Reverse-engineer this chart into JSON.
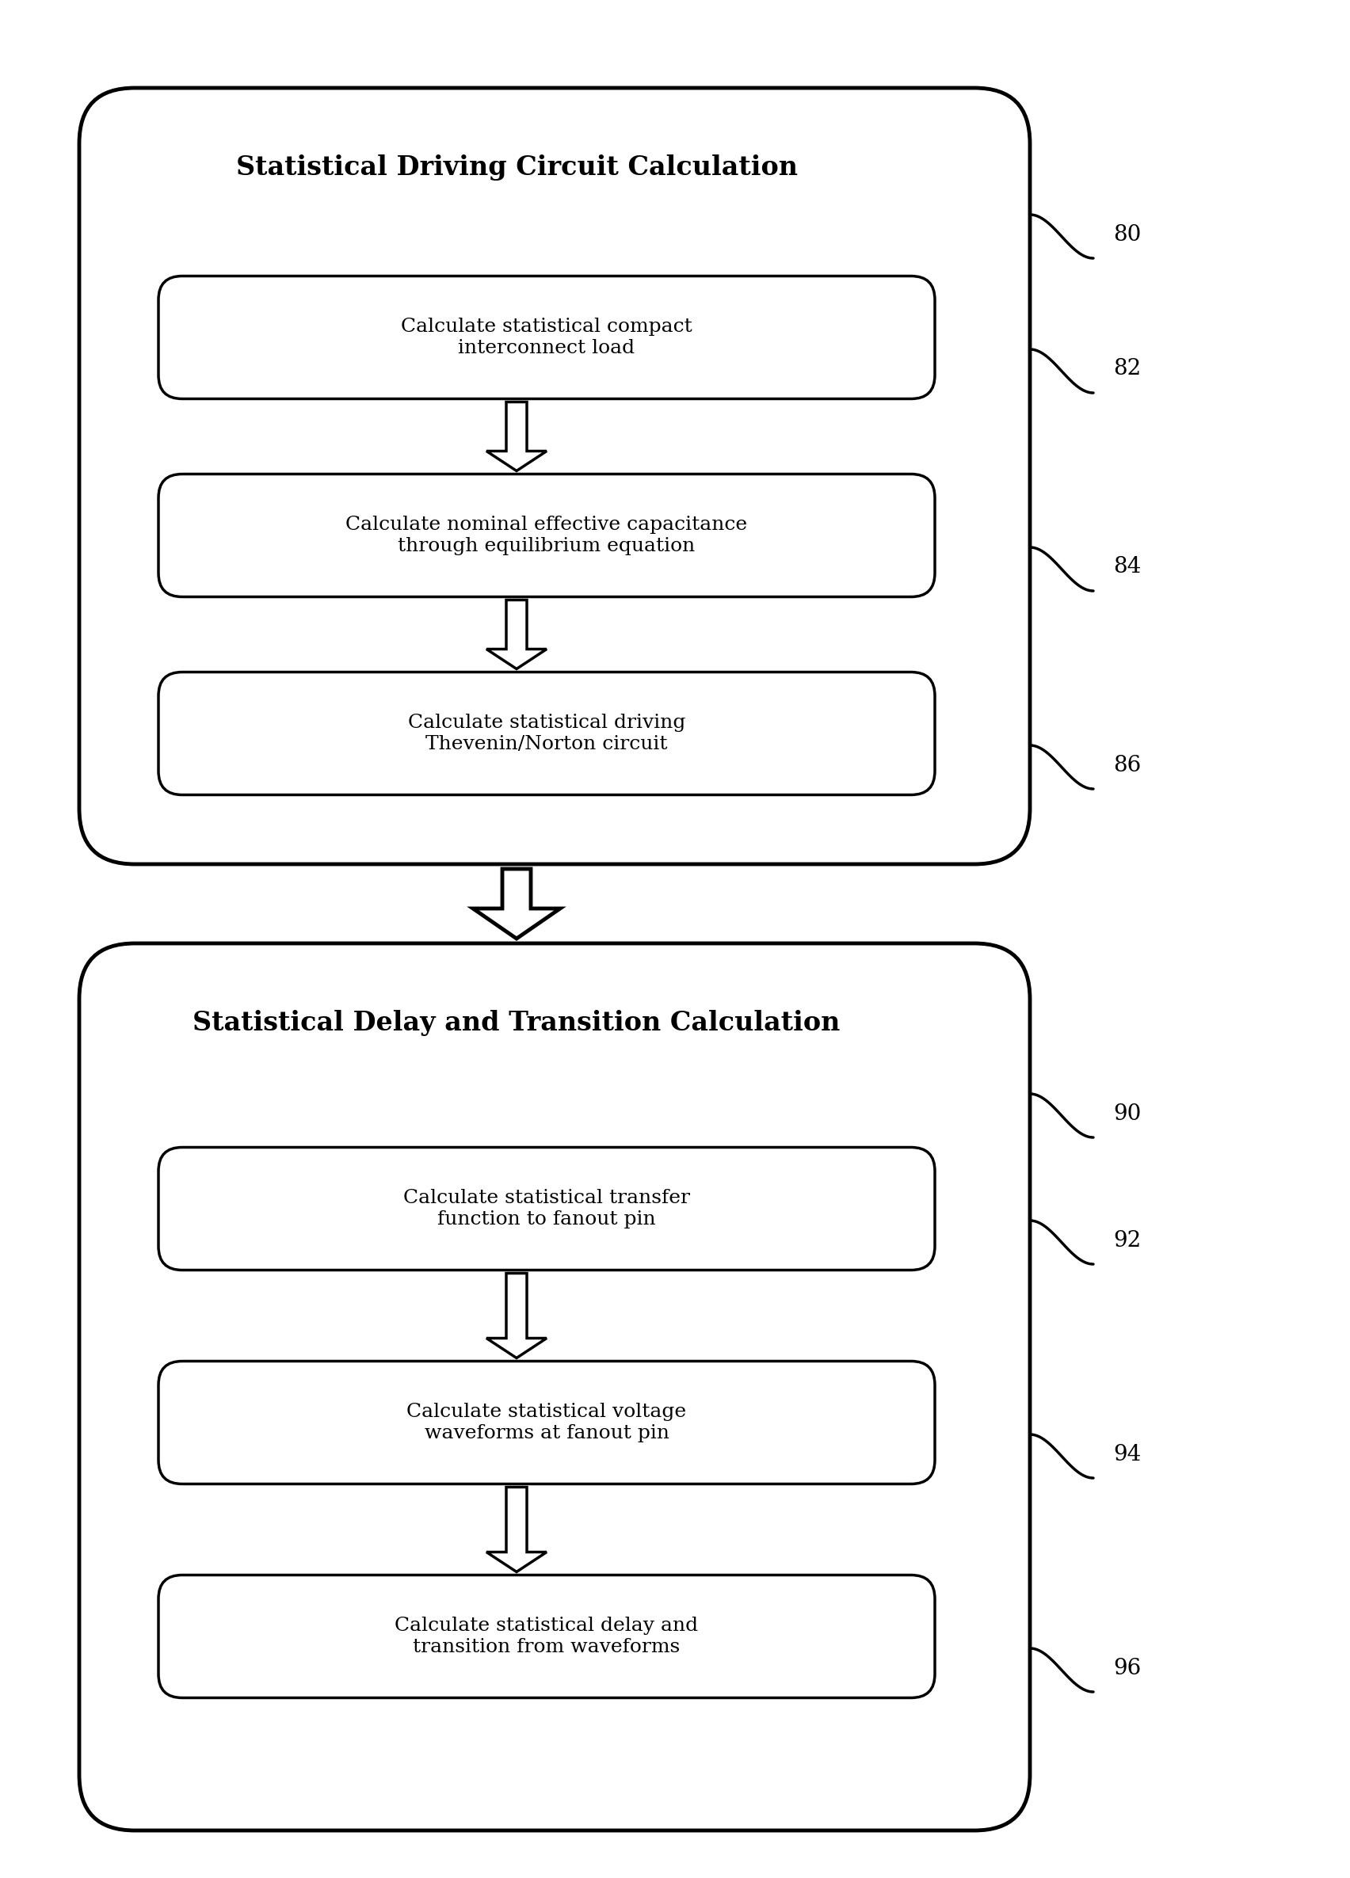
{
  "bg_color": "#ffffff",
  "line_color": "#000000",
  "box1_title": "Statistical Driving Circuit Calculation",
  "box1_steps": [
    "Calculate statistical compact\ninterconnect load",
    "Calculate nominal effective capacitance\nthrough equilibrium equation",
    "Calculate statistical driving\nThevenin/Norton circuit"
  ],
  "box1_labels": [
    "80",
    "82",
    "84",
    "86"
  ],
  "box2_title": "Statistical Delay and Transition Calculation",
  "box2_steps": [
    "Calculate statistical transfer\nfunction to fanout pin",
    "Calculate statistical voltage\nwaveforms at fanout pin",
    "Calculate statistical delay and\ntransition from waveforms"
  ],
  "box2_labels": [
    "90",
    "92",
    "94",
    "96"
  ],
  "fig_w": 17.04,
  "fig_h": 23.71
}
